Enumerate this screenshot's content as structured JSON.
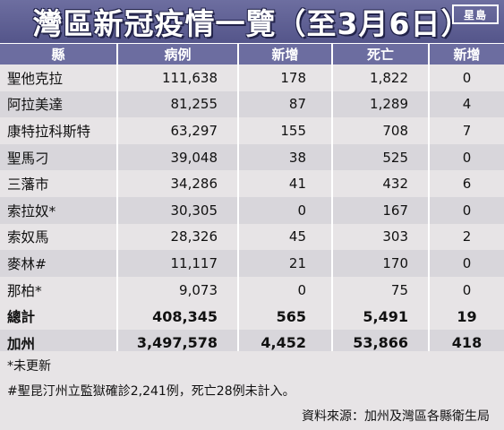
{
  "title": "灣區新冠疫情一覽（至3月6日）",
  "logo_text": "星島",
  "columns": [
    "縣",
    "病例",
    "新增",
    "死亡",
    "新增"
  ],
  "rows": [
    {
      "county": "聖他克拉",
      "cases": "111,638",
      "new_cases": "178",
      "deaths": "1,822",
      "new_deaths": "0"
    },
    {
      "county": "阿拉美達",
      "cases": "81,255",
      "new_cases": "87",
      "deaths": "1,289",
      "new_deaths": "4"
    },
    {
      "county": "康特拉科斯特",
      "cases": "63,297",
      "new_cases": "155",
      "deaths": "708",
      "new_deaths": "7"
    },
    {
      "county": "聖馬刁",
      "cases": "39,048",
      "new_cases": "38",
      "deaths": "525",
      "new_deaths": "0"
    },
    {
      "county": "三藩市",
      "cases": "34,286",
      "new_cases": "41",
      "deaths": "432",
      "new_deaths": "6"
    },
    {
      "county": "索拉奴*",
      "cases": "30,305",
      "new_cases": "0",
      "deaths": "167",
      "new_deaths": "0"
    },
    {
      "county": "索奴馬",
      "cases": "28,326",
      "new_cases": "45",
      "deaths": "303",
      "new_deaths": "2"
    },
    {
      "county": "麥林#",
      "cases": "11,117",
      "new_cases": "21",
      "deaths": "170",
      "new_deaths": "0"
    },
    {
      "county": "那柏*",
      "cases": "9,073",
      "new_cases": "0",
      "deaths": "75",
      "new_deaths": "0"
    }
  ],
  "total": {
    "county": "總計",
    "cases": "408,345",
    "new_cases": "565",
    "deaths": "5,491",
    "new_deaths": "19"
  },
  "california": {
    "county": "加州",
    "cases": "3,497,578",
    "new_cases": "4,452",
    "deaths": "53,866",
    "new_deaths": "418"
  },
  "notes": {
    "note1": "*未更新",
    "note2": "#聖昆汀州立監獄確診2,241例，死亡28例未計入。",
    "source": "資料來源：加州及灣區各縣衛生局"
  },
  "colors": {
    "header_bg": "#6c6da0",
    "row_light": "#e7e4e6",
    "row_dark": "#d8d6db"
  }
}
